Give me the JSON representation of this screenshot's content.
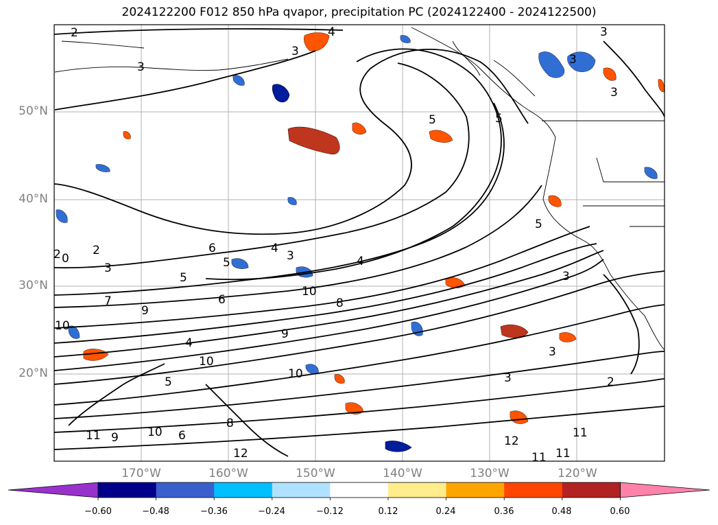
{
  "title": "2024122200 F012 850 hPa qvapor, precipitation PC (2024122400 - 2024122500)",
  "map": {
    "lat_labels": [
      "50°N",
      "40°N",
      "30°N",
      "20°N"
    ],
    "lon_labels": [
      "170°W",
      "160°W",
      "150°W",
      "140°W",
      "130°W",
      "120°W"
    ],
    "contour_labels": [
      {
        "text": "2"
      },
      {
        "text": "4"
      },
      {
        "text": "3"
      },
      {
        "text": "3"
      },
      {
        "text": "3"
      },
      {
        "text": "3"
      },
      {
        "text": "3"
      },
      {
        "text": "5"
      },
      {
        "text": "5"
      },
      {
        "text": "6"
      },
      {
        "text": "4"
      },
      {
        "text": "3"
      },
      {
        "text": "5"
      },
      {
        "text": "5"
      },
      {
        "text": "6"
      },
      {
        "text": "4"
      },
      {
        "text": "10"
      },
      {
        "text": "7"
      },
      {
        "text": "9"
      },
      {
        "text": "10"
      },
      {
        "text": "10"
      },
      {
        "text": "8"
      },
      {
        "text": "9"
      },
      {
        "text": "4"
      },
      {
        "text": "5"
      },
      {
        "text": "10"
      },
      {
        "text": "3"
      },
      {
        "text": "3"
      },
      {
        "text": "2"
      },
      {
        "text": "2"
      },
      {
        "text": "12"
      },
      {
        "text": "11"
      },
      {
        "text": "11"
      },
      {
        "text": "11"
      },
      {
        "text": "12"
      },
      {
        "text": "10"
      },
      {
        "text": "11"
      },
      {
        "text": "8"
      },
      {
        "text": "9"
      },
      {
        "text": "0"
      },
      {
        "text": "2"
      },
      {
        "text": "3"
      },
      {
        "text": "6"
      },
      {
        "text": "5"
      },
      {
        "text": "3"
      }
    ]
  },
  "colorbar": {
    "ticks": [
      "−0.60",
      "−0.48",
      "−0.36",
      "−0.24",
      "−0.12",
      "0.12",
      "0.24",
      "0.36",
      "0.48",
      "0.60"
    ],
    "colors": [
      "#9932CC",
      "#00008B",
      "#3A5FCD",
      "#00BFFF",
      "#B0E2FF",
      "#FFFFFF",
      "#FFEC8B",
      "#FFA500",
      "#FF4500",
      "#B22222",
      "#FF82AB"
    ]
  }
}
